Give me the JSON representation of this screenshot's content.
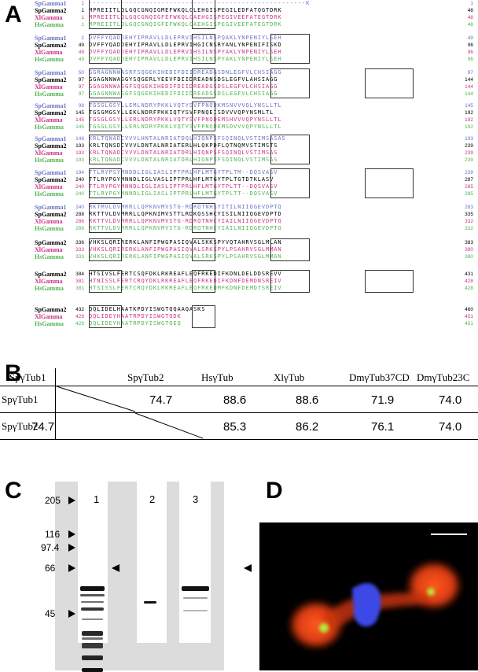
{
  "panels": {
    "a": "A",
    "b": "B",
    "c": "C",
    "d": "D"
  },
  "colors": {
    "sp1": "#6b73c9",
    "sp2": "#000000",
    "xl": "#d0338a",
    "hs": "#52b552"
  },
  "alignment": {
    "blocks": [
      {
        "rows": [
          {
            "name": "SpGamma1",
            "start": "1",
            "seq": "------------------------------------------------------K",
            "end": "1",
            "color": "sp1"
          },
          {
            "name": "SpGamma2",
            "start": "1",
            "seq": "MPREIITLQLGQCGNQIGMEFWKQLCLEHGISPEGILEDFATQGTDRK",
            "end": "48",
            "color": "sp2"
          },
          {
            "name": "XlGamma",
            "start": "1",
            "seq": "MPREIITLQLGQCGNQIGFEFWKQLCAEHGISPEGIVEEFATEGTDRK",
            "end": "48",
            "color": "xl"
          },
          {
            "name": "HsGamma",
            "start": "1",
            "seq": "MPREIITLQLGQCGNQIGFEFWKQLCAEHGISPEGIVEEFATEGTDRK",
            "end": "48",
            "color": "hs"
          }
        ]
      },
      {
        "rows": [
          {
            "name": "SpGamma1",
            "start": "2",
            "seq": "DVFFYQADDEHYIPRAVLLDLEPRVIHSILNSPQAKLYNPENIYLSEH",
            "end": "49",
            "color": "sp1"
          },
          {
            "name": "SpGamma2",
            "start": "49",
            "seq": "DVFFYQADDEHYIPRAVLLDLEPRVIHGICNSRYANLYNPENIFISKD",
            "end": "96",
            "color": "sp2"
          },
          {
            "name": "XlGamma",
            "start": "49",
            "seq": "DVFFYQADDEHYIPRAVLLDLEPRVIHSILNSPYAKLYNPENIYLSEH",
            "end": "96",
            "color": "xl"
          },
          {
            "name": "HsGamma",
            "start": "49",
            "seq": "DVFFYQADDEHYIPRAVLLDLEPRVIHSILNSPYAKLYNPENIYLSEH",
            "end": "96",
            "color": "hs"
          }
        ]
      },
      {
        "rows": [
          {
            "name": "SpGamma1",
            "start": "50",
            "seq": "GGRAGNNWASRFSQGEKIHEDIFDIIDREADGSDNLEGFVLCHSIAGG",
            "end": "97",
            "color": "sp1"
          },
          {
            "name": "SpGamma2",
            "start": "97",
            "seq": "GGAGNNWASGYSQGERLYEEVFDIIDREADNSDSLEGFVLAHSIAGG",
            "end": "144",
            "color": "sp2"
          },
          {
            "name": "XlGamma",
            "start": "97",
            "seq": "GGAGNNWASGFSQGEKIHEDIFDIIDREADGSDSLEGFVLCHSIAGG",
            "end": "144",
            "color": "xl"
          },
          {
            "name": "HsGamma",
            "start": "97",
            "seq": "GGAGNNWASGFSQGEKIHEDIFDIIDREADGSDSLEGFVLCHSIAGG",
            "end": "144",
            "color": "hs"
          }
        ]
      },
      {
        "rows": [
          {
            "name": "SpGamma1",
            "start": "98",
            "seq": "TGSGLGSYLLEMLNDRYPKKLVQTYSVFPNQDKMSNVVVQLYNSLLTL",
            "end": "145",
            "color": "sp1"
          },
          {
            "name": "SpGamma2",
            "start": "145",
            "seq": "TGSGMGSYLLEKLNDRFPKKIQTYSVFPNQEISDVVVQPYNSMLTL",
            "end": "192",
            "color": "sp2"
          },
          {
            "name": "XlGamma",
            "start": "145",
            "seq": "TGSGLGSYLLERLNDRYPKKLVQTYSVFPNQDEMSHVVVQPYNSLLTL",
            "end": "192",
            "color": "xl"
          },
          {
            "name": "HsGamma",
            "start": "145",
            "seq": "TGSGLGSYLLERLNDRYPKKLVQTYSVFPNQDEMSDVVVQPYNSLLTL",
            "end": "192",
            "color": "hs"
          }
        ]
      },
      {
        "rows": [
          {
            "name": "SpGamma1",
            "start": "146",
            "seq": "KRLTQNADCVVVLHNTALNRIATDQLHIQNPSFSQINQLVSTIMSASAS",
            "end": "193",
            "color": "sp1"
          },
          {
            "name": "SpGamma2",
            "start": "193",
            "seq": "KRLTQNSDCVVVLDNTALNRIATERLHLQKPDFLQTNQMVSTIMSTS",
            "end": "239",
            "color": "sp2"
          },
          {
            "name": "XlGamma",
            "start": "193",
            "seq": "KRLTQNADCVVVLDNTALNRIATDRLHIQNPSFSQINQLVSTIMSAS",
            "end": "239",
            "color": "xl"
          },
          {
            "name": "HsGamma",
            "start": "193",
            "seq": "KRLTQNADCVVVLDNTALNRIATDRLHIQNPSFSQINQLVSTIMSAS",
            "end": "239",
            "color": "hs"
          }
        ]
      },
      {
        "rows": [
          {
            "name": "SpGamma1",
            "start": "194",
            "seq": "TTLRYPSYMNDDLIGLIASLIPTPRLHFLMTGYTPLTM--DQSVASV",
            "end": "239",
            "color": "sp1"
          },
          {
            "name": "SpGamma2",
            "start": "240",
            "seq": "TTLRYPGYMNNDLIGLVASLIPTPRLHFLMTGYTPLTGTDTKLASV",
            "end": "287",
            "color": "sp2"
          },
          {
            "name": "XlGamma",
            "start": "240",
            "seq": "TTLRYPGYMNNDLIGLIASLIPTPRLHFLMTGYTPLTT--DQSVASV",
            "end": "285",
            "color": "xl"
          },
          {
            "name": "HsGamma",
            "start": "240",
            "seq": "TTLRYPGYMNNDLIGLIASLIPTPRLHFLMTGYTPLTT--DQSVASV",
            "end": "285",
            "color": "hs"
          }
        ]
      },
      {
        "rows": [
          {
            "name": "SpGamma1",
            "start": "240",
            "seq": "RKTMVLDVMRRLLQPKNVMVSTG-RDRQTNHSYITILNIIQGEVDPTQ",
            "end": "283",
            "color": "sp1"
          },
          {
            "name": "SpGamma2",
            "start": "288",
            "seq": "RKTTVLDVMRRLLQPKNIMVSTTLRDKQSSHCYISILNIIQGEVDPTD",
            "end": "335",
            "color": "sp2"
          },
          {
            "name": "XlGamma",
            "start": "286",
            "seq": "RKTTVLDVMRRLLQPKNVMVSTG-RDRQTNHCYIAILNIIQGEVDPTQ",
            "end": "332",
            "color": "xl"
          },
          {
            "name": "HsGamma",
            "start": "286",
            "seq": "RKTTVLDVMRRLLQPKNVMVSTG-RDRQTNHCYIAILNIIQGEVDPTQ",
            "end": "332",
            "color": "hs"
          }
        ]
      },
      {
        "rows": [
          {
            "name": "SpGamma2",
            "start": "336",
            "seq": "VHKSLQRIRERKLANFIPWGPASIQVALSKKSPYVQTAHRVSGLMLAN",
            "end": "383",
            "color": "sp2"
          },
          {
            "name": "XlGamma",
            "start": "333",
            "seq": "VHKSLQRIRERKLANFIPWGPASIQVALSRKSPYLPSAHRVSGLMMAN",
            "end": "380",
            "color": "xl"
          },
          {
            "name": "HsGamma",
            "start": "333",
            "seq": "VHKSLQRIRERKLANFIPWGPASIQVALSRKSPYLPSAHRVSGLMMAN",
            "end": "380",
            "color": "hs"
          }
        ]
      },
      {
        "rows": [
          {
            "name": "SpGamma2",
            "start": "384",
            "seq": "HTSIVSLFERTCSQFDKLRKREAFLEQFRKEDIFKDNLDELDDSREVV",
            "end": "431",
            "color": "sp2"
          },
          {
            "name": "XlGamma",
            "start": "381",
            "seq": "HTNISSLFERTCRQYDKLRKREAFLEQFRKEDIFKDNFDEMDNSREIV",
            "end": "428",
            "color": "xl"
          },
          {
            "name": "HsGamma",
            "start": "381",
            "seq": "HTSISSLFERTCRQYDKLRKREAFLEQFRKEDMFKDNFDEMDTSREIV",
            "end": "428",
            "color": "hs"
          }
        ]
      },
      {
        "rows": [
          {
            "name": "SpGamma2",
            "start": "432",
            "seq": "QQLIDELHAATKPDYISWGTQQAAQASKS",
            "end": "460",
            "color": "sp2"
          },
          {
            "name": "XlGamma",
            "start": "429",
            "seq": "QQLIDEYHAATRPDYISWGTQDK",
            "end": "451",
            "color": "xl"
          },
          {
            "name": "HsGamma",
            "start": "429",
            "seq": "QQLIDEYHAATRPDYISWGTQEQ",
            "end": "451",
            "color": "hs"
          }
        ]
      }
    ]
  },
  "identity_table": {
    "columns": [
      "SpγTub1",
      "SpγTub2",
      "HsγTub",
      "XlγTub",
      "DmγTub37CD",
      "DmγTub23C"
    ],
    "rows": [
      {
        "label": "SpγTub1",
        "values": [
          "",
          "74.7",
          "88.6",
          "88.6",
          "71.9",
          "74.0"
        ]
      },
      {
        "label": "SpγTub2",
        "values": [
          "74.7",
          "",
          "85.3",
          "86.2",
          "76.1",
          "74.0"
        ]
      }
    ]
  },
  "western_blot": {
    "lane_labels": [
      "1",
      "2",
      "3"
    ],
    "markers": [
      "205",
      "116",
      "97.4",
      "66",
      "45"
    ]
  }
}
